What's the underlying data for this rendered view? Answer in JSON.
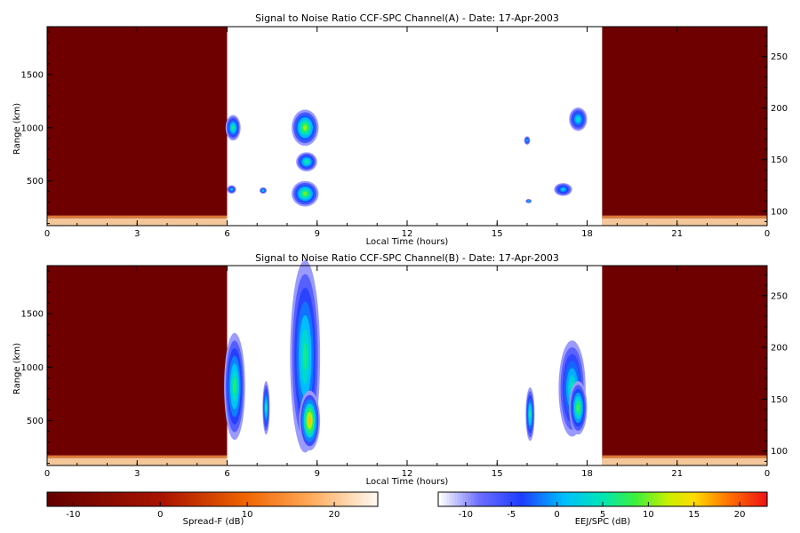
{
  "chart_data": [
    {
      "type": "heatmap",
      "title": "Signal to Noise Ratio CCF-SPC Channel(A) - Date: 17-Apr-2003",
      "xlabel": "Local Time (hours)",
      "ylabel": "Range (km)",
      "xlim": [
        0,
        24
      ],
      "ylim": [
        80,
        1950
      ],
      "xticks": [
        "0",
        "3",
        "6",
        "9",
        "12",
        "15",
        "18",
        "21",
        "0"
      ],
      "yticks": [
        500,
        1000,
        1500
      ],
      "y2lim": [
        86,
        279
      ],
      "y2ticks": [
        100,
        150,
        200,
        250
      ],
      "night_blocks": [
        [
          0,
          6
        ],
        [
          18.5,
          24
        ]
      ],
      "blobs": [
        {
          "t": 6.2,
          "r": 1000,
          "dt": 0.25,
          "dr": 120,
          "peak": 6
        },
        {
          "t": 6.15,
          "r": 420,
          "dt": 0.15,
          "dr": 40,
          "peak": 1
        },
        {
          "t": 8.6,
          "r": 1000,
          "dt": 0.45,
          "dr": 170,
          "peak": 11
        },
        {
          "t": 8.65,
          "r": 680,
          "dt": 0.35,
          "dr": 90,
          "peak": 6
        },
        {
          "t": 8.6,
          "r": 380,
          "dt": 0.45,
          "dr": 120,
          "peak": 10
        },
        {
          "t": 7.2,
          "r": 410,
          "dt": 0.12,
          "dr": 30,
          "peak": 1
        },
        {
          "t": 17.7,
          "r": 1080,
          "dt": 0.3,
          "dr": 110,
          "peak": 4
        },
        {
          "t": 17.2,
          "r": 420,
          "dt": 0.3,
          "dr": 60,
          "peak": 2
        },
        {
          "t": 16.0,
          "r": 880,
          "dt": 0.1,
          "dr": 40,
          "peak": 0
        },
        {
          "t": 16.05,
          "r": 310,
          "dt": 0.1,
          "dr": 20,
          "peak": 0
        }
      ]
    },
    {
      "type": "heatmap",
      "title": "Signal to Noise Ratio CCF-SPC Channel(B) - Date: 17-Apr-2003",
      "xlabel": "Local Time (hours)",
      "ylabel": "Range (km)",
      "xlim": [
        0,
        24
      ],
      "ylim": [
        80,
        1950
      ],
      "xticks": [
        "0",
        "3",
        "6",
        "9",
        "12",
        "15",
        "18",
        "21",
        "0"
      ],
      "yticks": [
        500,
        1000,
        1500
      ],
      "y2lim": [
        86,
        279
      ],
      "y2ticks": [
        100,
        150,
        200,
        250
      ],
      "night_blocks": [
        [
          0,
          6
        ],
        [
          18.5,
          24
        ]
      ],
      "blobs": [
        {
          "t": 6.25,
          "r": 820,
          "dt": 0.35,
          "dr": 500,
          "peak": 7
        },
        {
          "t": 7.3,
          "r": 620,
          "dt": 0.12,
          "dr": 250,
          "peak": 5
        },
        {
          "t": 8.6,
          "r": 1100,
          "dt": 0.5,
          "dr": 900,
          "peak": 6
        },
        {
          "t": 8.75,
          "r": 500,
          "dt": 0.35,
          "dr": 280,
          "peak": 16
        },
        {
          "t": 16.1,
          "r": 560,
          "dt": 0.15,
          "dr": 250,
          "peak": 6
        },
        {
          "t": 17.5,
          "r": 800,
          "dt": 0.45,
          "dr": 450,
          "peak": 5
        },
        {
          "t": 17.7,
          "r": 620,
          "dt": 0.3,
          "dr": 250,
          "peak": 9
        }
      ]
    }
  ],
  "colorbars": {
    "left": {
      "label": "Spread-F (dB)",
      "ticks": [
        -10,
        0,
        10,
        20
      ],
      "range": [
        -13,
        25
      ]
    },
    "right": {
      "label": "EEJ/SPC (dB)",
      "ticks": [
        -10,
        -5,
        0,
        5,
        10,
        15,
        20
      ],
      "range": [
        -13,
        23
      ]
    }
  }
}
